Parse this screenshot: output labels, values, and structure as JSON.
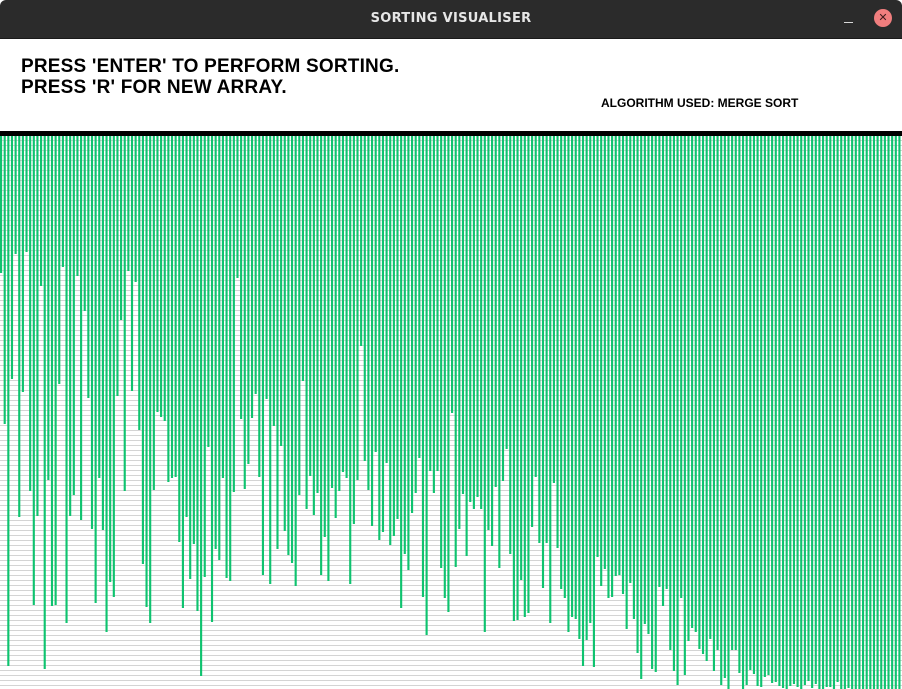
{
  "window": {
    "title": "SORTING VISUALISER",
    "close_glyph": "✕",
    "minimize_glyph": "–"
  },
  "header": {
    "instruction_line_1": "PRESS 'ENTER' TO PERFORM SORTING.",
    "instruction_line_2": "PRESS 'R' FOR NEW ARRAY.",
    "algorithm_label": "ALGORITHM USED: MERGE SORT"
  },
  "colors": {
    "bar": "#0fc36f",
    "title_bar": "#2b2b2b",
    "divider": "#000000",
    "close_button": "#f07e7e"
  },
  "icons": {
    "close": "close-icon",
    "minimize": "minimize-icon"
  },
  "chart_data": {
    "type": "bar",
    "orientation": "hanging-from-top",
    "grid": true,
    "ylim": [
      0,
      553
    ],
    "values": [
      137,
      288,
      530,
      243,
      118,
      381,
      256,
      116,
      355,
      469,
      380,
      150,
      533,
      344,
      470,
      469,
      248,
      131,
      487,
      380,
      359,
      140,
      384,
      175,
      262,
      393,
      467,
      342,
      394,
      496,
      446,
      461,
      260,
      184,
      355,
      135,
      255,
      146,
      294,
      428,
      471,
      487,
      354,
      276,
      281,
      285,
      346,
      342,
      341,
      406,
      472,
      381,
      443,
      408,
      475,
      540,
      441,
      311,
      486,
      413,
      424,
      342,
      442,
      445,
      356,
      142,
      283,
      353,
      328,
      282,
      258,
      341,
      439,
      263,
      448,
      290,
      413,
      310,
      395,
      419,
      427,
      450,
      359,
      245,
      373,
      340,
      379,
      357,
      439,
      401,
      445,
      352,
      382,
      355,
      336,
      342,
      448,
      388,
      344,
      210,
      325,
      354,
      390,
      316,
      404,
      396,
      327,
      409,
      400,
      383,
      472,
      418,
      434,
      377,
      357,
      322,
      461,
      499,
      335,
      357,
      335,
      432,
      462,
      476,
      277,
      431,
      393,
      358,
      420,
      366,
      373,
      361,
      373,
      496,
      394,
      410,
      351,
      432,
      345,
      313,
      418,
      485,
      484,
      444,
      481,
      477,
      391,
      341,
      407,
      452,
      407,
      487,
      347,
      412,
      453,
      462,
      496,
      481,
      483,
      503,
      530,
      504,
      487,
      531,
      421,
      450,
      433,
      462,
      461,
      440,
      439,
      458,
      493,
      447,
      483,
      517,
      543,
      488,
      498,
      533,
      536,
      451,
      470,
      453,
      514,
      535,
      549,
      462,
      539,
      505,
      492,
      496,
      513,
      518,
      525,
      503,
      535,
      514,
      549,
      542,
      553,
      514,
      514,
      537,
      553,
      549,
      534,
      538,
      550,
      551,
      541,
      539,
      547,
      546,
      550,
      552,
      553,
      550,
      548,
      551,
      553,
      549,
      545,
      552,
      548,
      553,
      553,
      551,
      551,
      553,
      546,
      553,
      553,
      552,
      553,
      553,
      553,
      553,
      553,
      553,
      553,
      553,
      553,
      553,
      553,
      553,
      553,
      553
    ]
  }
}
